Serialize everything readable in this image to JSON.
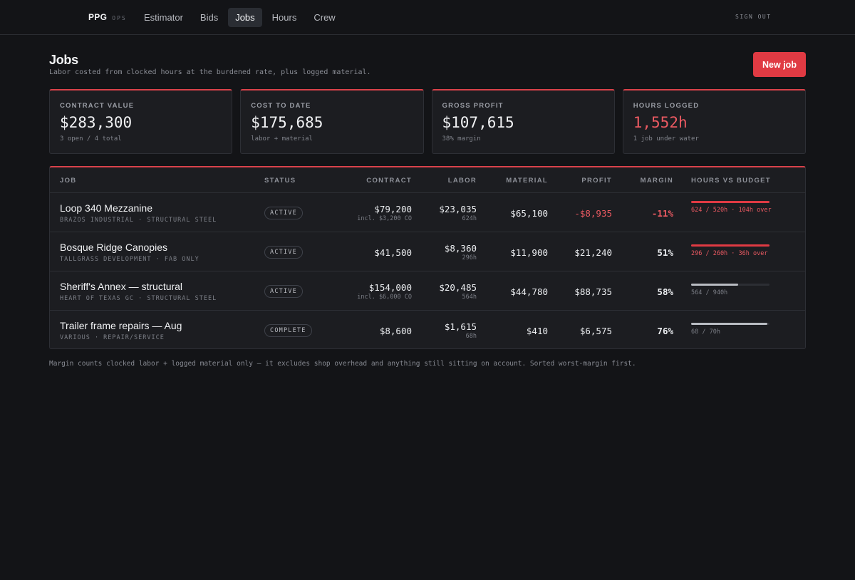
{
  "brand": {
    "name": "PPG",
    "sub": "OPS"
  },
  "nav": {
    "tabs": [
      {
        "label": "Estimator",
        "active": false
      },
      {
        "label": "Bids",
        "active": false
      },
      {
        "label": "Jobs",
        "active": true
      },
      {
        "label": "Hours",
        "active": false
      },
      {
        "label": "Crew",
        "active": false
      }
    ],
    "sign_out": "SIGN OUT"
  },
  "page": {
    "title": "Jobs",
    "subtitle": "Labor costed from clocked hours at the burdened rate, plus logged material.",
    "new_job_label": "New job"
  },
  "stats": [
    {
      "label": "CONTRACT VALUE",
      "value": "$283,300",
      "sub": "3 open / 4 total",
      "alert": false
    },
    {
      "label": "COST TO DATE",
      "value": "$175,685",
      "sub": "labor + material",
      "alert": false
    },
    {
      "label": "GROSS PROFIT",
      "value": "$107,615",
      "sub": "38% margin",
      "alert": false
    },
    {
      "label": "HOURS LOGGED",
      "value": "1,552h",
      "sub": "1 job under water",
      "alert": true
    }
  ],
  "table": {
    "headers": {
      "job": "JOB",
      "status": "STATUS",
      "contract": "CONTRACT",
      "labor": "LABOR",
      "material": "MATERIAL",
      "profit": "PROFIT",
      "margin": "MARGIN",
      "hours": "HOURS VS BUDGET"
    },
    "rows": [
      {
        "name": "Loop 340 Mezzanine",
        "meta": "BRAZOS INDUSTRIAL · STRUCTURAL STEEL",
        "status": "ACTIVE",
        "contract": "$79,200",
        "contract_note": "incl. $3,200 CO",
        "labor": "$23,035",
        "labor_hours": "624h",
        "material": "$65,100",
        "profit": "-$8,935",
        "margin": "-11%",
        "negative": true,
        "hours_text": "624 / 520h · 104h over",
        "hours_fraction": 1.0,
        "over": true
      },
      {
        "name": "Bosque Ridge Canopies",
        "meta": "TALLGRASS DEVELOPMENT · FAB ONLY",
        "status": "ACTIVE",
        "contract": "$41,500",
        "contract_note": "",
        "labor": "$8,360",
        "labor_hours": "296h",
        "material": "$11,900",
        "profit": "$21,240",
        "margin": "51%",
        "negative": false,
        "hours_text": "296 / 260h · 36h over",
        "hours_fraction": 1.0,
        "over": true
      },
      {
        "name": "Sheriff's Annex — structural",
        "meta": "HEART OF TEXAS GC · STRUCTURAL STEEL",
        "status": "ACTIVE",
        "contract": "$154,000",
        "contract_note": "incl. $6,000 CO",
        "labor": "$20,485",
        "labor_hours": "564h",
        "material": "$44,780",
        "profit": "$88,735",
        "margin": "58%",
        "negative": false,
        "hours_text": "564 / 940h",
        "hours_fraction": 0.6,
        "over": false
      },
      {
        "name": "Trailer frame repairs — Aug",
        "meta": "VARIOUS · REPAIR/SERVICE",
        "status": "COMPLETE",
        "contract": "$8,600",
        "contract_note": "",
        "labor": "$1,615",
        "labor_hours": "68h",
        "material": "$410",
        "profit": "$6,575",
        "margin": "76%",
        "negative": false,
        "hours_text": "68 / 70h",
        "hours_fraction": 0.971,
        "over": false
      }
    ]
  },
  "footnote": "Margin counts clocked labor + logged material only — it excludes shop overhead and anything still sitting on account. Sorted worst-margin first.",
  "colors": {
    "accent": "#e03a43",
    "background": "#131417",
    "surface": "#1c1d21",
    "negative": "#ec5a62"
  }
}
